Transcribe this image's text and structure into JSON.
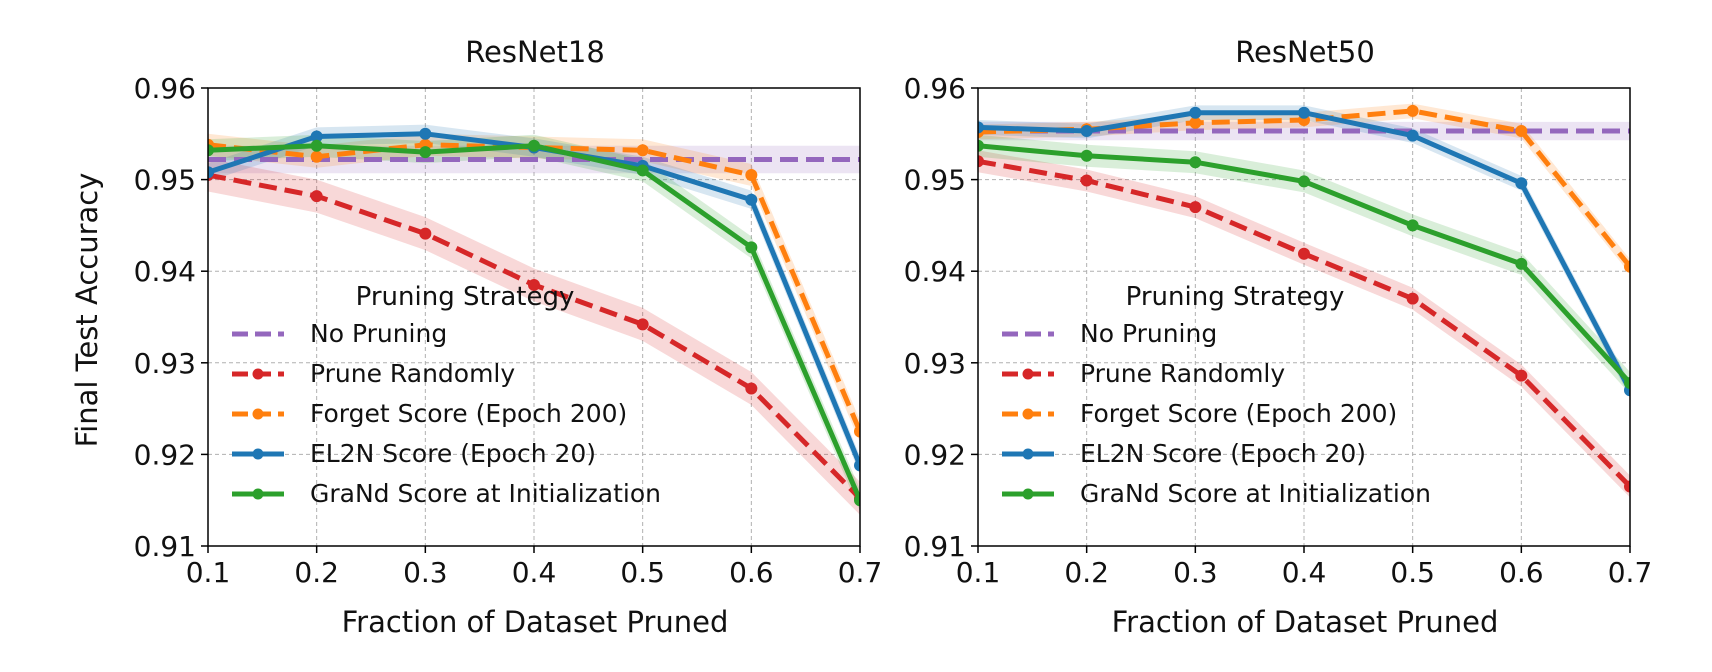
{
  "colors": {
    "no_pruning": "#9467bd",
    "prune_randomly": "#d62728",
    "forget": "#ff7f0e",
    "el2n": "#1f77b4",
    "grand": "#2ca02c",
    "grid": "#b0b0b0",
    "axis": "#000000"
  },
  "chart_data": [
    {
      "type": "line",
      "title": "ResNet18",
      "xlabel": "Fraction of Dataset Pruned",
      "ylabel": "Final Test Accuracy",
      "xlim": [
        0.1,
        0.7
      ],
      "ylim": [
        0.91,
        0.96
      ],
      "xticks": [
        "0.1",
        "0.2",
        "0.3",
        "0.4",
        "0.5",
        "0.6",
        "0.7"
      ],
      "yticks": [
        "0.91",
        "0.92",
        "0.93",
        "0.94",
        "0.95",
        "0.96"
      ],
      "grid": true,
      "legend": {
        "title": "Pruning Strategy",
        "placement": "lower-left",
        "entries": [
          "No Pruning",
          "Prune Randomly",
          "Forget Score (Epoch 200)",
          "EL2N Score (Epoch 20)",
          "GraNd Score at Initialization"
        ]
      },
      "x": [
        0.1,
        0.2,
        0.3,
        0.4,
        0.5,
        0.6,
        0.7
      ],
      "series": [
        {
          "name": "No Pruning",
          "color": "no_pruning",
          "dash": true,
          "markers": false,
          "values": [
            0.9522,
            0.9522,
            0.9522,
            0.9522,
            0.9522,
            0.9522,
            0.9522
          ],
          "band": 0.0015
        },
        {
          "name": "Prune Randomly",
          "color": "prune_randomly",
          "dash": true,
          "markers": true,
          "values": [
            0.9505,
            0.9482,
            0.9441,
            0.9385,
            0.9342,
            0.9272,
            0.9152
          ],
          "band": 0.0018
        },
        {
          "name": "Forget Score (Epoch 200)",
          "color": "forget",
          "dash": true,
          "markers": true,
          "values": [
            0.9538,
            0.9525,
            0.9538,
            0.9535,
            0.9532,
            0.9505,
            0.9225
          ],
          "band": 0.0012
        },
        {
          "name": "EL2N Score (Epoch 20)",
          "color": "el2n",
          "dash": false,
          "markers": true,
          "values": [
            0.9508,
            0.9547,
            0.955,
            0.9535,
            0.9515,
            0.9478,
            0.9188
          ],
          "band": 0.001
        },
        {
          "name": "GraNd Score at Initialization",
          "color": "grand",
          "dash": false,
          "markers": true,
          "values": [
            0.9532,
            0.9537,
            0.953,
            0.9537,
            0.951,
            0.9426,
            0.915
          ],
          "band": 0.0012
        }
      ]
    },
    {
      "type": "line",
      "title": "ResNet50",
      "xlabel": "Fraction of Dataset Pruned",
      "ylabel": "",
      "xlim": [
        0.1,
        0.7
      ],
      "ylim": [
        0.91,
        0.96
      ],
      "xticks": [
        "0.1",
        "0.2",
        "0.3",
        "0.4",
        "0.5",
        "0.6",
        "0.7"
      ],
      "yticks": [
        "0.91",
        "0.92",
        "0.93",
        "0.94",
        "0.95",
        "0.96"
      ],
      "grid": true,
      "legend": {
        "title": "Pruning Strategy",
        "placement": "lower-left",
        "entries": [
          "No Pruning",
          "Prune Randomly",
          "Forget Score (Epoch 200)",
          "EL2N Score (Epoch 20)",
          "GraNd Score at Initialization"
        ]
      },
      "x": [
        0.1,
        0.2,
        0.3,
        0.4,
        0.5,
        0.6,
        0.7
      ],
      "series": [
        {
          "name": "No Pruning",
          "color": "no_pruning",
          "dash": true,
          "markers": false,
          "values": [
            0.9553,
            0.9553,
            0.9553,
            0.9553,
            0.9553,
            0.9553,
            0.9553
          ],
          "band": 0.001
        },
        {
          "name": "Prune Randomly",
          "color": "prune_randomly",
          "dash": true,
          "markers": true,
          "values": [
            0.952,
            0.9499,
            0.947,
            0.9419,
            0.937,
            0.9286,
            0.9165
          ],
          "band": 0.0012
        },
        {
          "name": "Forget Score (Epoch 200)",
          "color": "forget",
          "dash": true,
          "markers": true,
          "values": [
            0.9552,
            0.9555,
            0.9562,
            0.9565,
            0.9575,
            0.9553,
            0.9405
          ],
          "band": 0.0008
        },
        {
          "name": "EL2N Score (Epoch 20)",
          "color": "el2n",
          "dash": false,
          "markers": true,
          "values": [
            0.9557,
            0.9553,
            0.9573,
            0.9573,
            0.9548,
            0.9496,
            0.927
          ],
          "band": 0.0008
        },
        {
          "name": "GraNd Score at Initialization",
          "color": "grand",
          "dash": false,
          "markers": true,
          "values": [
            0.9537,
            0.9526,
            0.9519,
            0.9498,
            0.945,
            0.9408,
            0.9278
          ],
          "band": 0.0012
        }
      ]
    }
  ]
}
